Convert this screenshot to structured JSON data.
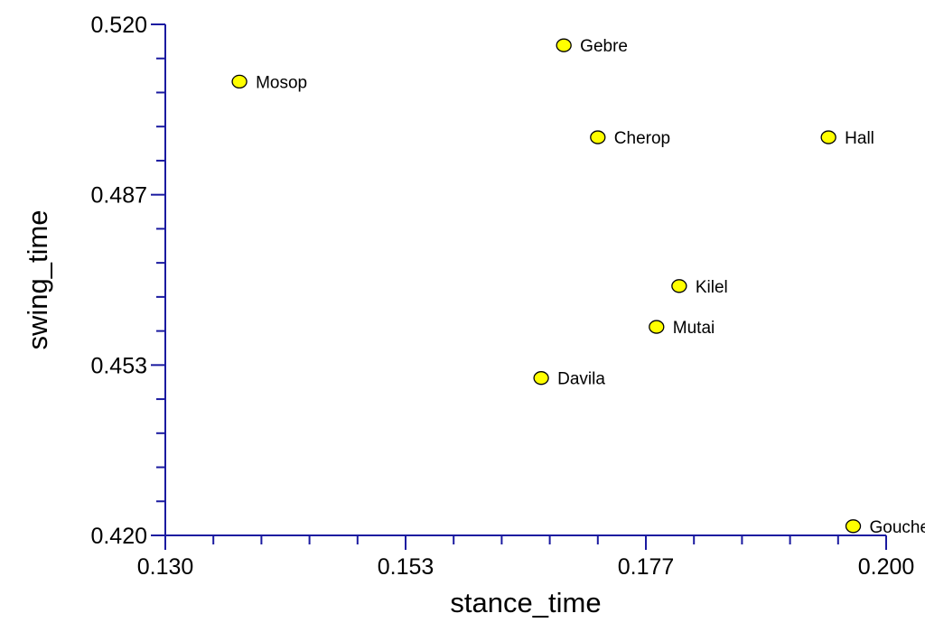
{
  "chart_data": {
    "type": "scatter",
    "xlabel": "stance_time",
    "ylabel": "swing_time",
    "xlim": [
      0.13,
      0.2
    ],
    "ylim": [
      0.42,
      0.52
    ],
    "x_ticks": [
      "0.130",
      "0.153",
      "0.177",
      "0.200"
    ],
    "y_ticks": [
      "0.420",
      "0.453",
      "0.487",
      "0.520"
    ],
    "grid": false,
    "marker_color": "#ffff00",
    "points": [
      {
        "label": "Mosop",
        "x": 0.1372,
        "y": 0.5088
      },
      {
        "label": "Gebre",
        "x": 0.1687,
        "y": 0.5159
      },
      {
        "label": "Cherop",
        "x": 0.172,
        "y": 0.4979
      },
      {
        "label": "Hall",
        "x": 0.1944,
        "y": 0.4979
      },
      {
        "label": "Kilel",
        "x": 0.1799,
        "y": 0.4688
      },
      {
        "label": "Mutai",
        "x": 0.1777,
        "y": 0.4608
      },
      {
        "label": "Davila",
        "x": 0.1665,
        "y": 0.4508
      },
      {
        "label": "Goucher",
        "x": 0.1968,
        "y": 0.4218
      }
    ]
  }
}
